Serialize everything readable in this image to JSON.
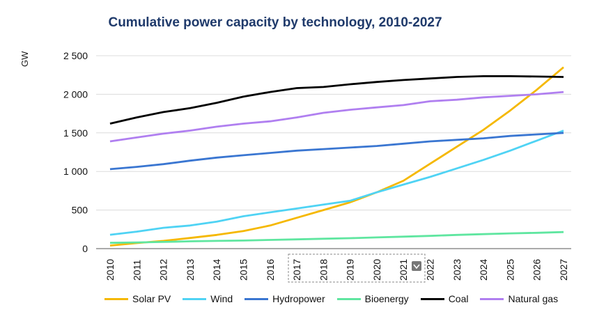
{
  "title": "Cumulative power capacity by technology, 2010-2027",
  "chart_data": {
    "type": "line",
    "title": "Cumulative power capacity by technology, 2010-2027",
    "xlabel": "",
    "ylabel": "GW",
    "ylim": [
      0,
      2500
    ],
    "yticks": [
      0,
      500,
      1000,
      1500,
      2000,
      2500
    ],
    "ytick_labels": [
      "0",
      "500",
      "1 000",
      "1 500",
      "2 000",
      "2 500"
    ],
    "grid": true,
    "legend_position": "bottom",
    "x": [
      "2010",
      "2011",
      "2012",
      "2013",
      "2014",
      "2015",
      "2016",
      "2017",
      "2018",
      "2019",
      "2020",
      "2021",
      "2022",
      "2023",
      "2024",
      "2025",
      "2026",
      "2027"
    ],
    "series": [
      {
        "name": "Solar PV",
        "color": "#f5b800",
        "values": [
          40,
          72,
          100,
          138,
          178,
          228,
          300,
          400,
          500,
          600,
          730,
          880,
          1100,
          1320,
          1540,
          1790,
          2060,
          2350
        ]
      },
      {
        "name": "Wind",
        "color": "#4fd3f4",
        "values": [
          180,
          220,
          270,
          300,
          350,
          420,
          470,
          520,
          570,
          620,
          730,
          830,
          930,
          1040,
          1150,
          1270,
          1400,
          1530
        ]
      },
      {
        "name": "Hydropower",
        "color": "#3a76d1",
        "values": [
          1030,
          1060,
          1095,
          1140,
          1180,
          1210,
          1240,
          1270,
          1290,
          1310,
          1330,
          1360,
          1390,
          1410,
          1430,
          1460,
          1480,
          1500
        ]
      },
      {
        "name": "Bioenergy",
        "color": "#5fe6a0",
        "values": [
          75,
          80,
          87,
          95,
          100,
          105,
          113,
          120,
          128,
          135,
          145,
          155,
          165,
          178,
          188,
          198,
          205,
          215
        ]
      },
      {
        "name": "Coal",
        "color": "#000000",
        "values": [
          1620,
          1700,
          1770,
          1820,
          1890,
          1970,
          2030,
          2080,
          2095,
          2130,
          2160,
          2185,
          2205,
          2225,
          2235,
          2235,
          2230,
          2225
        ]
      },
      {
        "name": "Natural gas",
        "color": "#b07ff0",
        "values": [
          1390,
          1440,
          1490,
          1530,
          1580,
          1620,
          1650,
          1700,
          1760,
          1800,
          1830,
          1860,
          1910,
          1930,
          1960,
          1980,
          2000,
          2030
        ]
      }
    ]
  }
}
